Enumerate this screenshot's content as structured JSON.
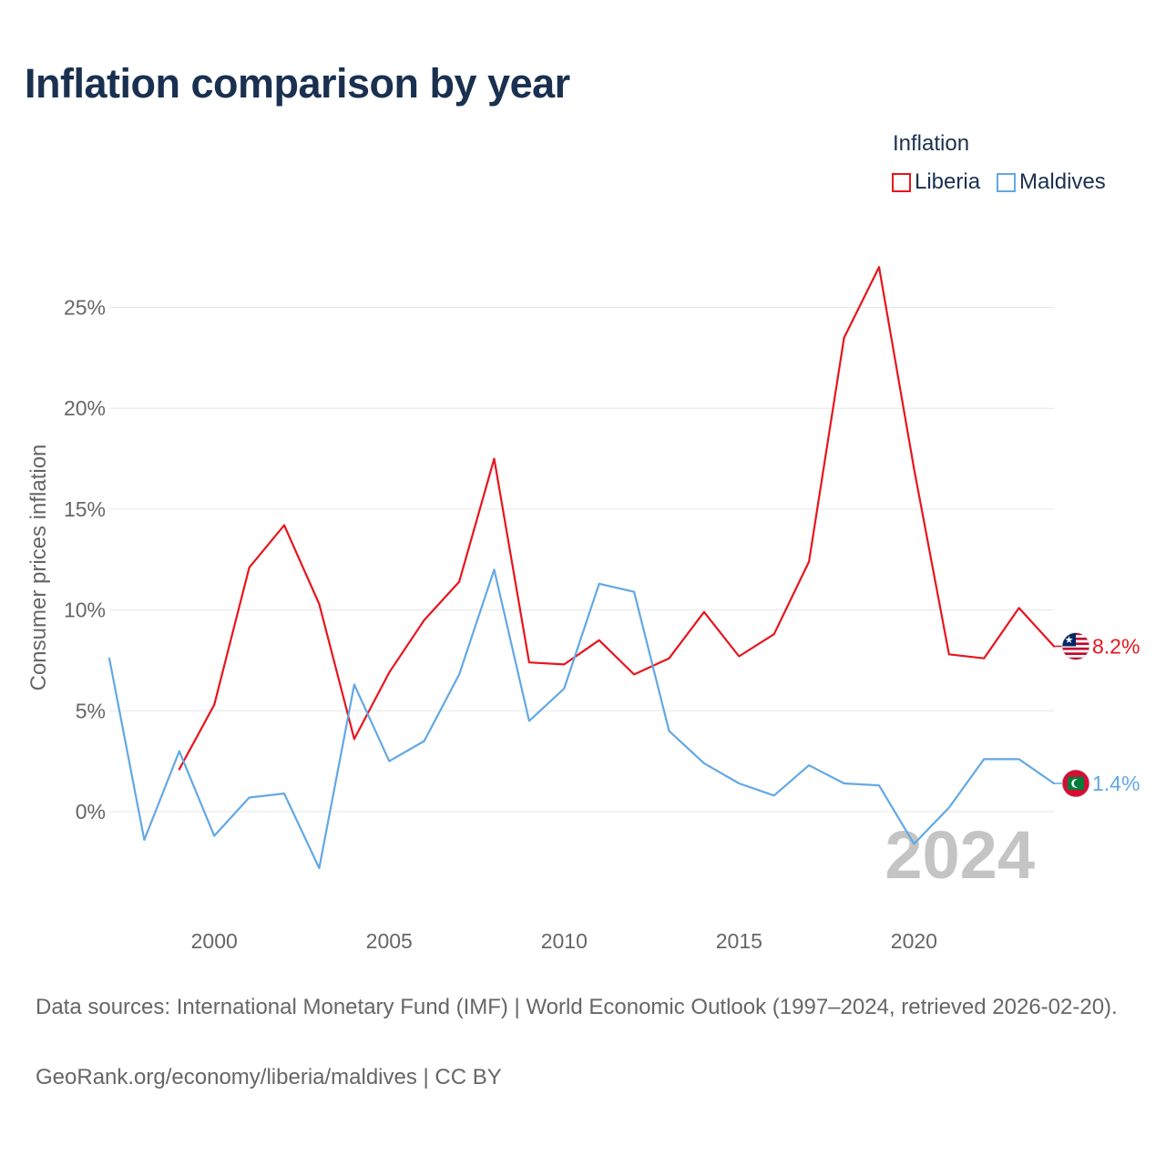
{
  "title": "Inflation comparison by year",
  "legend": {
    "title": "Inflation",
    "items": [
      {
        "label": "Liberia",
        "color": "#e8141c"
      },
      {
        "label": "Maldives",
        "color": "#62a8e5"
      }
    ]
  },
  "year_watermark": "2024",
  "footer": {
    "sources": "Data sources: International Monetary Fund (IMF) | World Economic Outlook (1997–2024, retrieved 2026-02-20).",
    "link": "GeoRank.org/economy/liberia/maldives | CC BY"
  },
  "chart_data": {
    "type": "line",
    "title": "Inflation comparison by year",
    "xlabel": "",
    "ylabel": "Consumer prices inflation",
    "xlim": [
      1997,
      2024
    ],
    "ylim": [
      -5,
      30
    ],
    "x_ticks": [
      2000,
      2005,
      2010,
      2015,
      2020
    ],
    "y_ticks": [
      0,
      5,
      10,
      15,
      20,
      25
    ],
    "y_tick_labels": [
      "0%",
      "5%",
      "10%",
      "15%",
      "20%",
      "25%"
    ],
    "grid": true,
    "series": [
      {
        "name": "Liberia",
        "color": "#e8141c",
        "end_label": "8.2%",
        "flag": "liberia",
        "x": [
          1999,
          2000,
          2001,
          2002,
          2003,
          2004,
          2005,
          2006,
          2007,
          2008,
          2009,
          2010,
          2011,
          2012,
          2013,
          2014,
          2015,
          2016,
          2017,
          2018,
          2019,
          2020,
          2021,
          2022,
          2023,
          2024
        ],
        "values": [
          2.1,
          5.3,
          12.1,
          14.2,
          10.3,
          3.6,
          6.9,
          9.5,
          11.4,
          17.5,
          7.4,
          7.3,
          8.5,
          6.8,
          7.6,
          9.9,
          7.7,
          8.8,
          12.4,
          23.5,
          27.0,
          17.0,
          7.8,
          7.6,
          10.1,
          8.2
        ]
      },
      {
        "name": "Maldives",
        "color": "#62a8e5",
        "end_label": "1.4%",
        "flag": "maldives",
        "x": [
          1997,
          1998,
          1999,
          2000,
          2001,
          2002,
          2003,
          2004,
          2005,
          2006,
          2007,
          2008,
          2009,
          2010,
          2011,
          2012,
          2013,
          2014,
          2015,
          2016,
          2017,
          2018,
          2019,
          2020,
          2021,
          2022,
          2023,
          2024
        ],
        "values": [
          7.6,
          -1.4,
          3.0,
          -1.2,
          0.7,
          0.9,
          -2.8,
          6.3,
          2.5,
          3.5,
          6.8,
          12.0,
          4.5,
          6.1,
          11.3,
          10.9,
          4.0,
          2.4,
          1.4,
          0.8,
          2.3,
          1.4,
          1.3,
          -1.6,
          0.2,
          2.6,
          2.6,
          1.4
        ]
      }
    ]
  }
}
